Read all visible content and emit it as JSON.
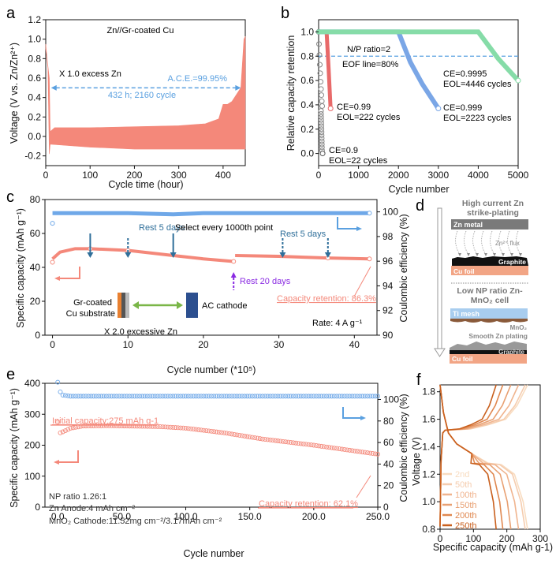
{
  "chart_data": [
    {
      "panel": "a",
      "type": "area",
      "title": "Zn//Gr-coated Cu",
      "xlabel": "Cycle time (hour)",
      "ylabel": "Voltage (V vs. Zn/Zn2+)",
      "xlim": [
        0,
        450
      ],
      "ylim": [
        -0.3,
        1.2
      ],
      "xticks": [
        "0",
        "100",
        "200",
        "300",
        "400"
      ],
      "yticks": [
        "-0.2",
        "0.0",
        "0.2",
        "0.4",
        "0.6",
        "0.8",
        "1.0",
        "1.2"
      ],
      "color": "#f4887a",
      "upper_envelope": [
        [
          0,
          0.95
        ],
        [
          3,
          0.8
        ],
        [
          8,
          0.6
        ],
        [
          10,
          0.05
        ],
        [
          20,
          0.09
        ],
        [
          100,
          0.09
        ],
        [
          200,
          0.1
        ],
        [
          300,
          0.11
        ],
        [
          360,
          0.13
        ],
        [
          390,
          0.18
        ],
        [
          400,
          0.33
        ],
        [
          410,
          0.33
        ],
        [
          420,
          0.36
        ],
        [
          440,
          0.5
        ],
        [
          447,
          1.0
        ],
        [
          450,
          1.03
        ]
      ],
      "lower_envelope": [
        [
          0,
          0.9
        ],
        [
          5,
          0.7
        ],
        [
          8,
          -0.18
        ],
        [
          10,
          -0.08
        ],
        [
          100,
          -0.11
        ],
        [
          200,
          -0.13
        ],
        [
          300,
          -0.13
        ],
        [
          400,
          -0.13
        ],
        [
          450,
          -0.13
        ]
      ],
      "annotations": {
        "excess": "X 1.0 excess Zn",
        "ace": "A.C.E.=99.95%",
        "duration": "432 h; 2160 cycle"
      },
      "arrow_y": 0.5,
      "arrow_x": [
        12,
        440
      ]
    },
    {
      "panel": "b",
      "type": "line",
      "xlabel": "Cycle number",
      "ylabel": "Relative capacity retention",
      "xlim": [
        0,
        5000
      ],
      "ylim": [
        -0.1,
        1.1
      ],
      "xticks": [
        "0",
        "1000",
        "2000",
        "3000",
        "4000",
        "5000"
      ],
      "yticks": [
        "0.0",
        "0.2",
        "0.4",
        "0.6",
        "0.8",
        "1.0"
      ],
      "eol_line": 0.8,
      "annotations": {
        "np_ratio": "N/P ratio=2",
        "eof": "EOF line=80%"
      },
      "series": [
        {
          "name": "CE=0.9",
          "label1": "CE=0.9",
          "label2": "EOL=22 cycles",
          "color": "#666666",
          "x": [
            0,
            10,
            20,
            30,
            40,
            50,
            60,
            70,
            80,
            90,
            100
          ],
          "y": [
            1.0,
            0.9,
            0.81,
            0.73,
            0.66,
            0.59,
            0.53,
            0.48,
            0.43,
            0.39,
            0.0
          ]
        },
        {
          "name": "CE=0.99",
          "label1": "CE=0.99",
          "label2": "EOL=222 cycles",
          "color": "#e86a6a",
          "x": [
            0,
            200,
            250,
            300
          ],
          "y": [
            1.0,
            1.0,
            0.7,
            0.37
          ]
        },
        {
          "name": "CE=0.999",
          "label1": "CE=0.999",
          "label2": "EOL=2223 cycles",
          "color": "#7aa6e6",
          "x": [
            0,
            2000,
            2300,
            2600,
            3000
          ],
          "y": [
            1.0,
            1.0,
            0.75,
            0.57,
            0.37
          ]
        },
        {
          "name": "CE=0.9995",
          "label1": "CE=0.9995",
          "label2": "EOL=4446 cycles",
          "color": "#86dca8",
          "x": [
            0,
            4000,
            4500,
            5000
          ],
          "y": [
            1.0,
            1.0,
            0.78,
            0.6
          ]
        }
      ]
    },
    {
      "panel": "c",
      "type": "scatter",
      "xlabel": "Cycle number (*10^5)",
      "ylabel_left": "Specific capacity (mAh g-1)",
      "ylabel_right": "Coulombic efficiency (%)",
      "xlim": [
        -1,
        43
      ],
      "ylim_left": [
        0,
        80
      ],
      "ylim_right": [
        90,
        101
      ],
      "xticks": [
        "0",
        "10",
        "20",
        "30",
        "40"
      ],
      "yticks_left": [
        "0",
        "20",
        "40",
        "60",
        "80"
      ],
      "yticks_right": [
        "90",
        "92",
        "94",
        "96",
        "98",
        "100"
      ],
      "series": [
        {
          "name": "Coulombic efficiency",
          "axis": "right",
          "color": "#6fa8e8",
          "x": [
            0,
            5,
            10,
            16,
            20,
            24,
            30,
            36,
            42
          ],
          "y": [
            99.9,
            99.9,
            99.9,
            99.8,
            99.9,
            99.9,
            99.9,
            99.9,
            99.9
          ]
        },
        {
          "name": "Specific capacity",
          "axis": "left",
          "color": "#f4887a",
          "x": [
            0,
            1,
            3,
            5,
            10,
            16,
            20,
            24,
            24.2,
            30,
            36.5,
            42
          ],
          "y": [
            45,
            49,
            51,
            51,
            50,
            47,
            45,
            43.5,
            47,
            46.5,
            45.5,
            45
          ]
        }
      ],
      "annotations": {
        "rest5_a": "Rest 5 days",
        "select": "Select every 1000th point",
        "rest5_b": "Rest 5 days",
        "rest20": "Rest 20 days",
        "retention": "Capacity retention: 86.3%",
        "rate": "Rate: 4 A g-1",
        "substrate1": "Gr-coated",
        "substrate2": "Cu substrate",
        "cathode": "AC cathode",
        "excess": "X 2.0 excessive Zn"
      },
      "rest_arrows_x": [
        5,
        10,
        16,
        30.5,
        36.5
      ],
      "rest20_x": 24
    },
    {
      "panel": "e",
      "type": "scatter",
      "xlabel": "Cycle number",
      "ylabel_left": "Specific capacity (mAh g-1)",
      "ylabel_right": "Coulombic efficiency (%)",
      "xlim": [
        -10,
        250
      ],
      "ylim_left": [
        0,
        400
      ],
      "ylim_right": [
        0,
        115
      ],
      "xticks": [
        "0.0",
        "50.0",
        "100.0",
        "150.0",
        "200.0",
        "250.0"
      ],
      "yticks_left": [
        "0",
        "100",
        "200",
        "300",
        "400"
      ],
      "yticks_right": [
        "0",
        "20",
        "40",
        "60",
        "80",
        "100"
      ],
      "series": [
        {
          "name": "Coulombic efficiency",
          "axis": "right",
          "color": "#6fa8e8",
          "x": [
            0,
            1,
            2,
            4,
            10,
            50,
            100,
            150,
            200,
            250
          ],
          "y": [
            116,
            113,
            107,
            104,
            103,
            103,
            103,
            103,
            103,
            103
          ]
        },
        {
          "name": "Specific capacity",
          "axis": "left",
          "color": "#f4887a",
          "x": [
            0,
            1,
            2,
            5,
            10,
            20,
            40,
            80,
            100,
            130,
            160,
            200,
            250
          ],
          "y": [
            275,
            255,
            240,
            245,
            255,
            262,
            263,
            260,
            255,
            240,
            220,
            200,
            171
          ]
        }
      ],
      "annotations": {
        "initial": "Initial capacity:275 mAh g-1",
        "retention": "Capacity retention: 62.1%",
        "np": "NP ratio 1.26:1",
        "anode": "Zn Anode:4 mAh cm-2",
        "cathode": "MnO2 Cathode:11.52mg cm-2/3.17mAh cm-2"
      }
    },
    {
      "panel": "f",
      "type": "line",
      "xlabel": "Specific capacity (mAh g-1)",
      "ylabel": "Voltage (V)",
      "xlim": [
        0,
        300
      ],
      "ylim": [
        0.8,
        1.85
      ],
      "xticks": [
        "0",
        "100",
        "200",
        "300"
      ],
      "yticks": [
        "0.8",
        "1.0",
        "1.2",
        "1.4",
        "1.6",
        "1.8"
      ],
      "series": [
        {
          "name": "2nd",
          "color": "#f8dcc0",
          "capacity": 262
        },
        {
          "name": "50th",
          "color": "#f5ccae",
          "capacity": 255
        },
        {
          "name": "100th",
          "color": "#f0b48e",
          "capacity": 235
        },
        {
          "name": "150th",
          "color": "#e8a072",
          "capacity": 212
        },
        {
          "name": "200th",
          "color": "#e08850",
          "capacity": 188
        },
        {
          "name": "250th",
          "color": "#c9601e",
          "capacity": 168
        }
      ]
    }
  ],
  "panels": {
    "a": "a",
    "b": "b",
    "c": "c",
    "d": "d",
    "e": "e",
    "f": "f"
  },
  "labels": {
    "a_title": "Zn//Gr-coated Cu",
    "a_xlabel": "Cycle time (hour)",
    "a_ylabel": "Voltage (V vs. Zn/Zn²⁺)",
    "b_xlabel": "Cycle number",
    "b_ylabel": "Relative capacity retention",
    "c_xlabel": "Cycle number (*10⁵)",
    "c_ylabel_left": "Specific capacity (mAh g⁻¹)",
    "c_ylabel_right": "Coulombic efficiency (%)",
    "c_select": "Select every 1000th point",
    "c_rate": "Rate: 4 A g⁻¹",
    "e_xlabel": "Cycle number",
    "e_ylabel_left": "Specific capacity (mAh g⁻¹)",
    "e_ylabel_right": "Coulombic efficiency (%)",
    "e_anode": "Zn Anode:4 mAh cm⁻²",
    "e_cathode": "MnO₂ Cathode:11.52mg cm⁻²/3.17mAh cm⁻²",
    "f_xlabel": "Specific capacity (mAh g-1)",
    "f_ylabel": "Voltage (V)"
  },
  "schematic_d": {
    "title1": "High current Zn",
    "title2": "strike-plating",
    "zn_metal": "Zn metal",
    "flux": "Zn²⁺ flux",
    "graphite": "Graphite",
    "cu_foil": "Cu foil",
    "title3": "Low NP ratio Zn-",
    "title4": "MnO₂ cell",
    "ti_mesh": "Ti mesh",
    "mno2": "MnO₂",
    "smooth": "Smooth  Zn plating",
    "graphite2": "Graphite",
    "cu_foil2": "Cu foil",
    "colors": {
      "zn_metal": "#7a7a7a",
      "cu_foil": "#f2a585",
      "ti_mesh": "#a8cdef",
      "graphite": "#111111",
      "mno2": "#8a5a3a"
    }
  }
}
